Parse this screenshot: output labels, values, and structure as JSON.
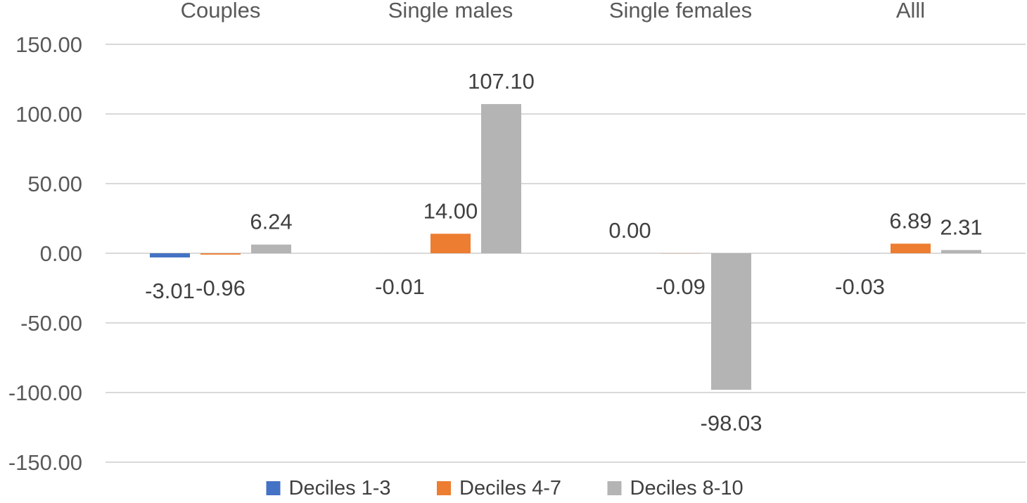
{
  "chart_data": {
    "type": "bar",
    "title": "",
    "xlabel": "",
    "ylabel": "",
    "categories": [
      "Couples",
      "Single males",
      "Single females",
      "Alll"
    ],
    "series": [
      {
        "name": "Deciles 1-3",
        "color": "#4472c4",
        "values": [
          -3.01,
          -0.01,
          0.0,
          -0.03
        ],
        "labels": [
          "-3.01",
          "-0.01",
          "0.00",
          "-0.03"
        ]
      },
      {
        "name": "Deciles 4-7",
        "color": "#ed7d31",
        "values": [
          -0.96,
          14.0,
          -0.09,
          6.89
        ],
        "labels": [
          "-0.96",
          "14.00",
          "-0.09",
          "6.89"
        ]
      },
      {
        "name": "Deciles 8-10",
        "color": "#b4b4b4",
        "values": [
          6.24,
          107.1,
          -98.03,
          2.31
        ],
        "labels": [
          "6.24",
          "107.10",
          "-98.03",
          "2.31"
        ]
      }
    ],
    "ylim": [
      -150,
      150
    ],
    "yticks": [
      150,
      100,
      50,
      0,
      -50,
      -100,
      -150
    ],
    "ytick_labels": [
      "150.00",
      "100.00",
      "50.00",
      "0.00",
      "-50.00",
      "-100.00",
      "-150.00"
    ],
    "category_labels_position": "top",
    "grid": true,
    "legend_position": "bottom"
  }
}
